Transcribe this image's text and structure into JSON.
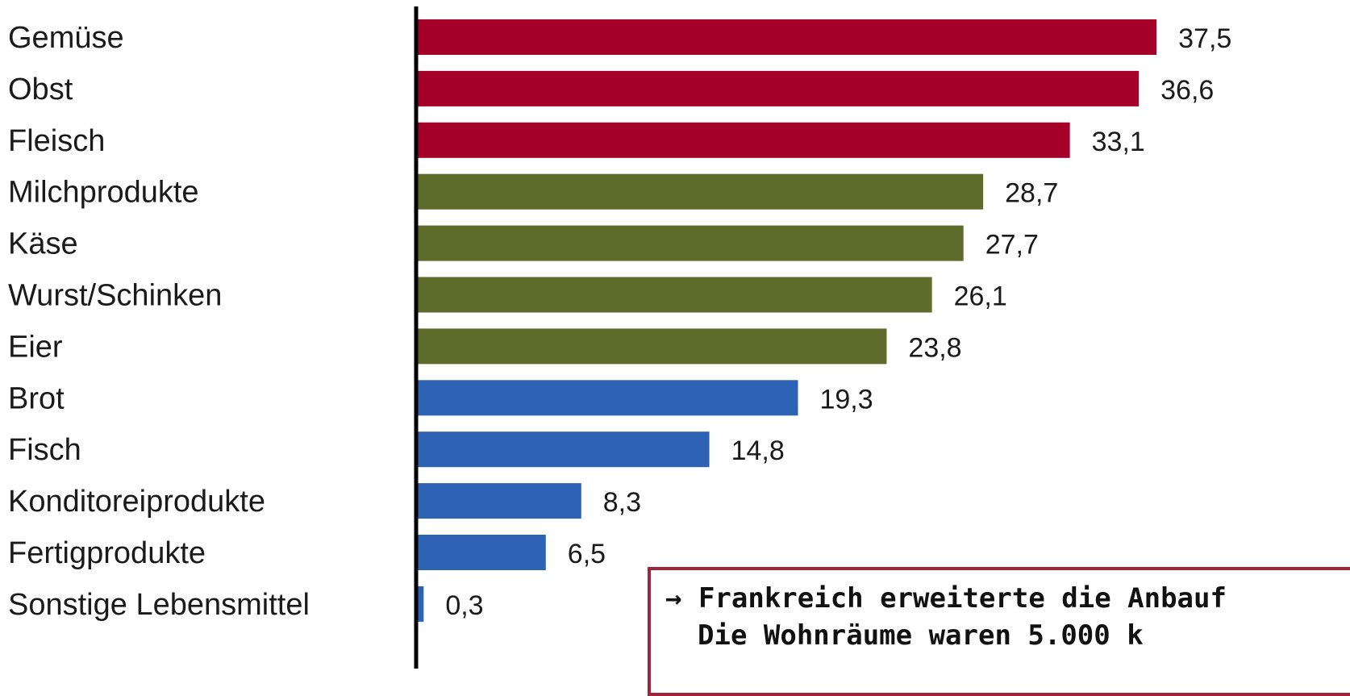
{
  "chart_data": {
    "type": "bar",
    "orientation": "horizontal",
    "title": "",
    "xlabel": "",
    "ylabel": "",
    "categories": [
      "Gemüse",
      "Obst",
      "Fleisch",
      "Milchprodukte",
      "Käse",
      "Wurst/Schinken",
      "Eier",
      "Brot",
      "Fisch",
      "Konditoreiprodukte",
      "Fertigprodukte",
      "Sonstige Lebensmittel"
    ],
    "values": [
      37.5,
      36.6,
      33.1,
      28.7,
      27.7,
      26.1,
      23.8,
      19.3,
      14.8,
      8.3,
      6.5,
      0.3
    ],
    "value_labels": [
      "37,5",
      "36,6",
      "33,1",
      "28,7",
      "27,7",
      "26,1",
      "23,8",
      "19,3",
      "14,8",
      "8,3",
      "6,5",
      "0,3"
    ],
    "xlim": [
      0,
      40
    ],
    "grid": false,
    "legend": "none",
    "bar_colors": [
      "#a4002a",
      "#a4002a",
      "#a4002a",
      "#5e6b2b",
      "#5e6b2b",
      "#5e6b2b",
      "#5e6b2b",
      "#2d62b5",
      "#2d62b5",
      "#2d62b5",
      "#2d62b5",
      "#2d62b5"
    ],
    "axis_color": "#000000"
  },
  "callout": {
    "line1": "→ Frankreich erweiterte die Anbauf",
    "line2": "Die Wohnräume waren 5.000 k",
    "border_color": "#a0243c"
  }
}
